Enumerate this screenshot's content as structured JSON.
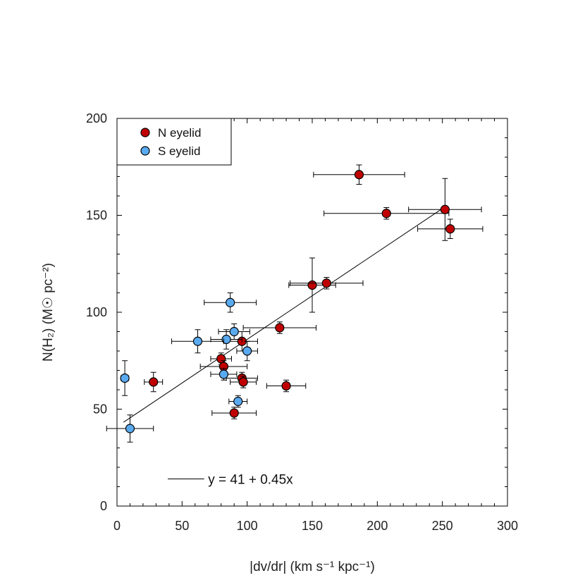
{
  "chart_data": {
    "type": "scatter",
    "title": "",
    "xlabel": "|dv/dr| (km s⁻¹ kpc⁻¹)",
    "ylabel": "N(H₂) (M☉ pc⁻²)",
    "xlim": [
      0,
      300
    ],
    "ylim": [
      0,
      200
    ],
    "x_ticks": [
      0,
      50,
      100,
      150,
      200,
      250,
      300
    ],
    "y_ticks": [
      0,
      50,
      100,
      150,
      200
    ],
    "x_tick_labels": [
      "0",
      "50",
      "100",
      "150",
      "200",
      "250",
      "300"
    ],
    "y_tick_labels": [
      "0",
      "50",
      "100",
      "150",
      "200"
    ],
    "legend_position": "top-left",
    "colors": {
      "N eyelid": "#c00000",
      "S eyelid": "#5aaaf0",
      "fit": "#000000"
    },
    "series": [
      {
        "name": "N eyelid",
        "points": [
          {
            "x": 186,
            "y": 171,
            "xerr": [
              35,
              35
            ],
            "yerr": [
              5,
              5
            ]
          },
          {
            "x": 207,
            "y": 151,
            "xerr": [
              48,
              48
            ],
            "yerr": [
              3,
              3
            ]
          },
          {
            "x": 252,
            "y": 153,
            "xerr": [
              28,
              28
            ],
            "yerr": [
              16,
              16
            ]
          },
          {
            "x": 256,
            "y": 143,
            "xerr": [
              25,
              25
            ],
            "yerr": [
              5,
              5
            ]
          },
          {
            "x": 150,
            "y": 114,
            "xerr": [
              18,
              18
            ],
            "yerr": [
              14,
              14
            ]
          },
          {
            "x": 161,
            "y": 115,
            "xerr": [
              28,
              28
            ],
            "yerr": [
              3,
              3
            ]
          },
          {
            "x": 125,
            "y": 92,
            "xerr": [
              28,
              28
            ],
            "yerr": [
              3,
              3
            ]
          },
          {
            "x": 96,
            "y": 85,
            "xerr": [
              12,
              12
            ],
            "yerr": [
              5,
              5
            ]
          },
          {
            "x": 80,
            "y": 76,
            "xerr": [
              8,
              8
            ],
            "yerr": [
              3,
              3
            ]
          },
          {
            "x": 82,
            "y": 72,
            "xerr": [
              18,
              18
            ],
            "yerr": [
              3,
              3
            ]
          },
          {
            "x": 96,
            "y": 66,
            "xerr": [
              12,
              12
            ],
            "yerr": [
              3,
              3
            ]
          },
          {
            "x": 97,
            "y": 64,
            "xerr": [
              10,
              10
            ],
            "yerr": [
              3,
              3
            ]
          },
          {
            "x": 130,
            "y": 62,
            "xerr": [
              15,
              15
            ],
            "yerr": [
              3,
              3
            ]
          },
          {
            "x": 90,
            "y": 48,
            "xerr": [
              17,
              17
            ],
            "yerr": [
              3,
              3
            ]
          },
          {
            "x": 28,
            "y": 64,
            "xerr": [
              7,
              7
            ],
            "yerr": [
              5,
              5
            ]
          }
        ]
      },
      {
        "name": "S eyelid",
        "points": [
          {
            "x": 87,
            "y": 105,
            "xerr": [
              20,
              20
            ],
            "yerr": [
              5,
              5
            ]
          },
          {
            "x": 90,
            "y": 90,
            "xerr": [
              12,
              12
            ],
            "yerr": [
              4,
              4
            ]
          },
          {
            "x": 84,
            "y": 86,
            "xerr": [
              12,
              12
            ],
            "yerr": [
              5,
              5
            ]
          },
          {
            "x": 62,
            "y": 85,
            "xerr": [
              20,
              20
            ],
            "yerr": [
              6,
              6
            ]
          },
          {
            "x": 100,
            "y": 80,
            "xerr": [
              8,
              8
            ],
            "yerr": [
              5,
              5
            ]
          },
          {
            "x": 82,
            "y": 68,
            "xerr": [
              10,
              10
            ],
            "yerr": [
              3,
              3
            ]
          },
          {
            "x": 93,
            "y": 54,
            "xerr": [
              7,
              7
            ],
            "yerr": [
              3,
              3
            ]
          },
          {
            "x": 6,
            "y": 66,
            "xerr": [
              3,
              3
            ],
            "yerr": [
              9,
              9
            ]
          },
          {
            "x": 10,
            "y": 40,
            "xerr": [
              18,
              18
            ],
            "yerr": [
              7,
              7
            ]
          }
        ]
      }
    ],
    "fit_line": {
      "label": "y = 41 + 0.45x",
      "intercept": 41,
      "slope": 0.45,
      "x_range": [
        5,
        252
      ]
    }
  }
}
